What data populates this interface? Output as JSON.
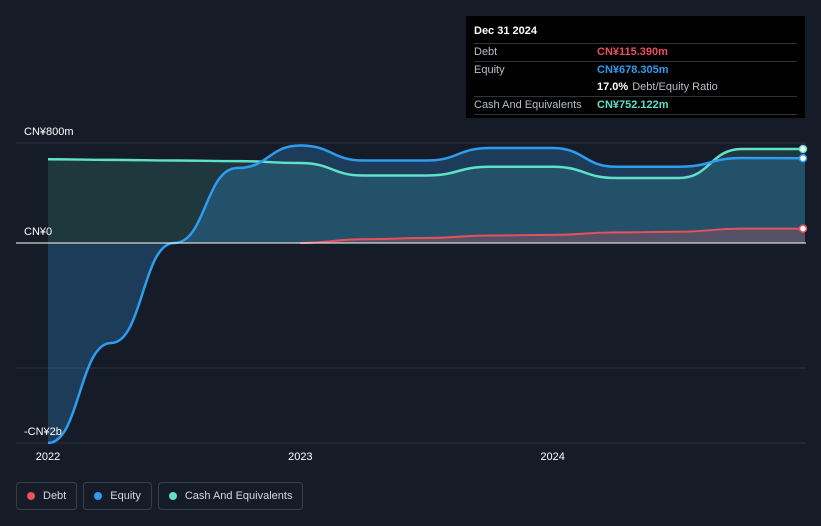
{
  "chart_data": {
    "type": "area",
    "x_ticks": [
      "2022",
      "2023",
      "2024"
    ],
    "y_ticks": [
      "CN¥800m",
      "CN¥0",
      "-CN¥2b"
    ],
    "ylim": [
      -1600,
      800
    ],
    "grid": true,
    "series": [
      {
        "name": "Debt",
        "color": "#e8505b",
        "x": [
          2023.0,
          2023.25,
          2023.5,
          2023.75,
          2024.0,
          2024.25,
          2024.5,
          2024.75,
          2025.0
        ],
        "values": [
          0,
          30,
          40,
          60,
          65,
          85,
          90,
          115,
          115.39
        ]
      },
      {
        "name": "Equity",
        "color": "#2e9cf0",
        "x": [
          2022.0,
          2022.25,
          2022.5,
          2022.75,
          2023.0,
          2023.25,
          2023.5,
          2023.75,
          2024.0,
          2024.25,
          2024.5,
          2024.75,
          2025.0
        ],
        "values": [
          -1600,
          -800,
          0,
          600,
          780,
          660,
          660,
          760,
          760,
          610,
          610,
          680,
          678.305
        ]
      },
      {
        "name": "Cash And Equivalents",
        "color": "#5fe0c8",
        "x": [
          2022.0,
          2022.25,
          2022.5,
          2022.75,
          2023.0,
          2023.25,
          2023.5,
          2023.75,
          2024.0,
          2024.25,
          2024.5,
          2024.75,
          2025.0
        ],
        "values": [
          670,
          665,
          660,
          655,
          640,
          540,
          540,
          610,
          610,
          520,
          520,
          752,
          752.122
        ]
      }
    ]
  },
  "tooltip": {
    "date": "Dec 31 2024",
    "debt_label": "Debt",
    "debt_value": "CN¥115.390m",
    "equity_label": "Equity",
    "equity_value": "CN¥678.305m",
    "ratio_value": "17.0%",
    "ratio_label": "Debt/Equity Ratio",
    "cash_label": "Cash And Equivalents",
    "cash_value": "CN¥752.122m"
  },
  "legend": {
    "debt": "Debt",
    "equity": "Equity",
    "cash": "Cash And Equivalents"
  },
  "colors": {
    "debt": "#e8505b",
    "equity": "#2e9cf0",
    "cash": "#5fe0c8",
    "background": "#161c27"
  }
}
